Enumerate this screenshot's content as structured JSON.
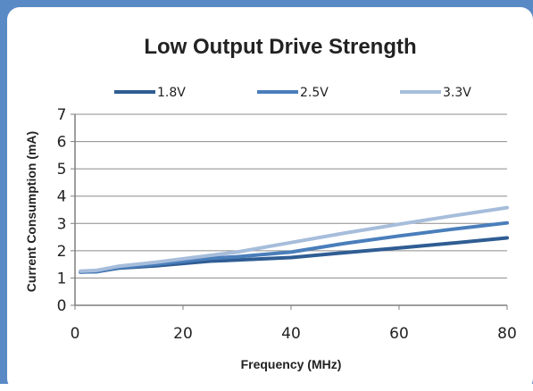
{
  "colors": {
    "frame": "#5a8ac6",
    "grid": "#8c8c8c",
    "axis": "#7f7f7f"
  },
  "chart_data": {
    "type": "line",
    "title": "Low Output Drive Strength",
    "xlabel": "Frequency (MHz)",
    "ylabel": "Current Consumption (mA)",
    "xlim": [
      0,
      80
    ],
    "ylim": [
      0,
      7
    ],
    "xticks": [
      "0",
      "20",
      "40",
      "60",
      "80"
    ],
    "yticks": [
      "0",
      "1",
      "2",
      "3",
      "4",
      "5",
      "6",
      "7"
    ],
    "grid": true,
    "legend_position": "top",
    "series": [
      {
        "name": "1.8V",
        "color": "#2f5d93",
        "x": [
          1,
          4,
          8,
          15,
          25,
          30,
          40,
          50,
          60,
          70,
          80
        ],
        "y": [
          1.22,
          1.23,
          1.36,
          1.45,
          1.62,
          1.66,
          1.75,
          1.93,
          2.1,
          2.28,
          2.47
        ]
      },
      {
        "name": "2.5V",
        "color": "#4a7ebb",
        "x": [
          1,
          4,
          8,
          15,
          25,
          30,
          40,
          50,
          60,
          70,
          80
        ],
        "y": [
          1.22,
          1.24,
          1.38,
          1.5,
          1.72,
          1.78,
          1.95,
          2.27,
          2.54,
          2.79,
          3.02
        ]
      },
      {
        "name": "3.3V",
        "color": "#a6bddb",
        "x": [
          1,
          4,
          8,
          15,
          25,
          30,
          40,
          50,
          60,
          70,
          80
        ],
        "y": [
          1.25,
          1.28,
          1.43,
          1.58,
          1.83,
          1.95,
          2.3,
          2.65,
          2.97,
          3.28,
          3.58
        ]
      }
    ]
  }
}
